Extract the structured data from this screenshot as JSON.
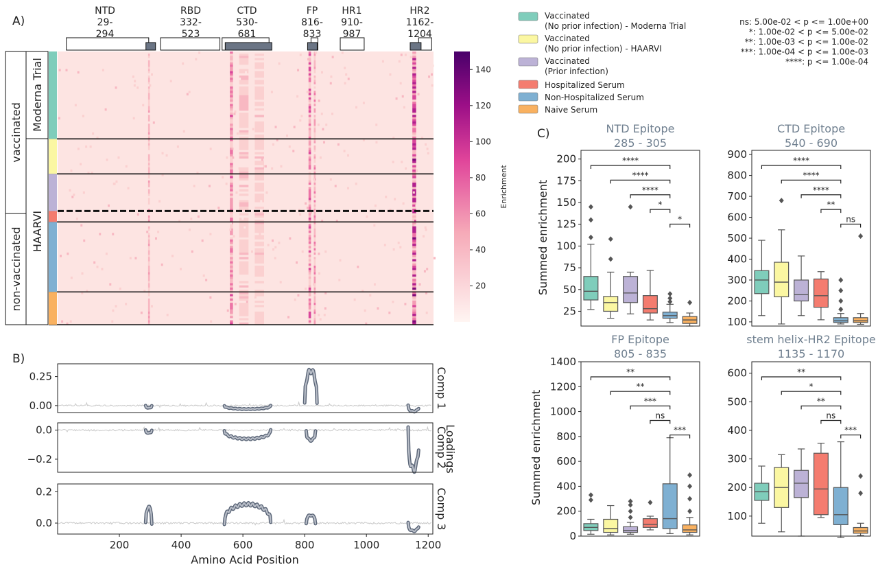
{
  "chart_data": [
    {
      "type": "heatmap",
      "panel_label": "A)",
      "x_range": [
        1,
        1210
      ],
      "regions": [
        {
          "name": "NTD",
          "range_text": "29-\n294",
          "start": 29,
          "end": 294
        },
        {
          "name": "RBD",
          "range_text": "332-\n523",
          "start": 332,
          "end": 523
        },
        {
          "name": "CTD",
          "range_text": "530-\n681",
          "start": 530,
          "end": 681
        },
        {
          "name": "FP",
          "range_text": "816-\n833",
          "start": 816,
          "end": 833
        },
        {
          "name": "HR1",
          "range_text": "910-\n987",
          "start": 910,
          "end": 987
        },
        {
          "name": "HR2",
          "range_text": "1162-\n1204",
          "start": 1162,
          "end": 1204
        }
      ],
      "epitope_marks": [
        [
          285,
          305
        ],
        [
          540,
          690
        ],
        [
          805,
          835
        ],
        [
          1135,
          1170
        ]
      ],
      "row_groups": [
        {
          "name": "Vaccinated (No prior infection) - Moderna Trial",
          "color": "#7fcdbb",
          "rows": 40
        },
        {
          "name": "Vaccinated (No prior infection) - HAARVI",
          "color": "#fbf7a2",
          "rows": 16
        },
        {
          "name": "Vaccinated (Prior infection)",
          "color": "#bcb2d6",
          "rows": 17
        },
        {
          "name": "Hospitalized Serum",
          "color": "#f47c6f",
          "rows": 5
        },
        {
          "name": "Non-Hospitalized Serum",
          "color": "#7fb0d2",
          "rows": 32
        },
        {
          "name": "Naive Serum",
          "color": "#f9b160",
          "rows": 15
        }
      ],
      "side_labels": {
        "status_top": "vaccinated",
        "status_bottom": "non-vaccinated",
        "cohort_top": "Moderna Trial",
        "cohort_bottom": "HAARVI"
      },
      "colorbar": {
        "label": "Enrichment",
        "min": 0,
        "max": 150,
        "ticks": [
          "20",
          "40",
          "60",
          "80",
          "100",
          "120",
          "140"
        ]
      },
      "hot_columns": [
        {
          "pos": 295,
          "mean": 35,
          "width": 6
        },
        {
          "pos": 560,
          "mean": 55,
          "width": 10
        },
        {
          "pos": 600,
          "mean": 25,
          "width": 30
        },
        {
          "pos": 650,
          "mean": 22,
          "width": 30
        },
        {
          "pos": 812,
          "mean": 60,
          "width": 8
        },
        {
          "pos": 828,
          "mean": 45,
          "width": 6
        },
        {
          "pos": 1148,
          "mean": 75,
          "width": 12
        }
      ]
    },
    {
      "type": "line",
      "panel_label": "B)",
      "xlabel": "Amino Acid Position",
      "ylabel": "Loadings",
      "x_ticks": [
        "200",
        "400",
        "600",
        "800",
        "1000",
        "1200"
      ],
      "xlim": [
        0,
        1215
      ],
      "components": [
        {
          "name": "Comp 1",
          "ylim": [
            -0.06,
            0.36
          ],
          "yticks": [
            {
              "v": 0.0,
              "label": "0.00"
            },
            {
              "v": 0.25,
              "label": "0.25"
            }
          ],
          "features": [
            {
              "x0": 285,
              "x1": 305,
              "h": -0.02
            },
            {
              "x0": 540,
              "x1": 690,
              "h": -0.03
            },
            {
              "x0": 800,
              "x1": 840,
              "h": 0.3
            },
            {
              "x0": 1135,
              "x1": 1170,
              "h": -0.05
            }
          ]
        },
        {
          "name": "Comp 2",
          "ylim": [
            -0.29,
            0.05
          ],
          "yticks": [
            {
              "v": 0.0,
              "label": "0.0"
            },
            {
              "v": -0.2,
              "label": "−0.2"
            }
          ],
          "features": [
            {
              "x0": 285,
              "x1": 305,
              "h": -0.02
            },
            {
              "x0": 540,
              "x1": 690,
              "h": -0.06
            },
            {
              "x0": 805,
              "x1": 835,
              "h": -0.07
            },
            {
              "x0": 1135,
              "x1": 1170,
              "h": -0.27
            }
          ]
        },
        {
          "name": "Comp 3",
          "ylim": [
            -0.07,
            0.25
          ],
          "yticks": [
            {
              "v": 0.0,
              "label": "0.0"
            },
            {
              "v": 0.2,
              "label": "0.2"
            }
          ],
          "features": [
            {
              "x0": 285,
              "x1": 305,
              "h": 0.1
            },
            {
              "x0": 540,
              "x1": 690,
              "h": 0.12
            },
            {
              "x0": 805,
              "x1": 835,
              "h": 0.05
            },
            {
              "x0": 1135,
              "x1": 1170,
              "h": -0.05
            }
          ]
        }
      ]
    },
    {
      "type": "box",
      "panel_label": "C)",
      "ylabel": "Summed enrichment",
      "group_colors": [
        "#7fcdbb",
        "#fbf7a2",
        "#bcb2d6",
        "#f47c6f",
        "#7fb0d2",
        "#f9b160"
      ],
      "significance_legend": [
        "ns: 5.00e-02 < p <= 1.00e+00",
        "*: 1.00e-02 < p <= 5.00e-02",
        "**: 1.00e-03 < p <= 1.00e-02",
        "***: 1.00e-04 < p <= 1.00e-03",
        "****: p <= 1.00e-04"
      ],
      "panels": [
        {
          "title": "NTD Epitope",
          "subtitle": "285 - 305",
          "ylim": [
            8,
            210
          ],
          "yticks": [
            "25",
            "50",
            "75",
            "100",
            "125",
            "150",
            "175",
            "200"
          ],
          "boxes": [
            {
              "q1": 38,
              "median": 48,
              "q3": 65,
              "wlo": 27,
              "whi": 102,
              "fliers": [
                110,
                130,
                145
              ]
            },
            {
              "q1": 25,
              "median": 35,
              "q3": 42,
              "wlo": 17,
              "whi": 70,
              "fliers": [
                85,
                108
              ]
            },
            {
              "q1": 35,
              "median": 46,
              "q3": 65,
              "wlo": 22,
              "whi": 70,
              "fliers": [
                145
              ]
            },
            {
              "q1": 23,
              "median": 28,
              "q3": 43,
              "wlo": 15,
              "whi": 72,
              "fliers": []
            },
            {
              "q1": 17,
              "median": 20,
              "q3": 24,
              "wlo": 12,
              "whi": 33,
              "fliers": [
                36,
                40,
                45
              ]
            },
            {
              "q1": 11,
              "median": 15,
              "q3": 19,
              "wlo": 8,
              "whi": 23,
              "fliers": [
                35
              ]
            }
          ],
          "brackets": [
            {
              "from": 0,
              "to": 4,
              "label": "****"
            },
            {
              "from": 1,
              "to": 4,
              "label": "****"
            },
            {
              "from": 2,
              "to": 4,
              "label": "****"
            },
            {
              "from": 3,
              "to": 4,
              "label": "*"
            },
            {
              "from": 4,
              "to": 5,
              "label": "*"
            }
          ]
        },
        {
          "title": "CTD Epitope",
          "subtitle": "540 - 690",
          "ylim": [
            80,
            920
          ],
          "yticks": [
            "100",
            "200",
            "300",
            "400",
            "500",
            "600",
            "700",
            "800",
            "900"
          ],
          "boxes": [
            {
              "q1": 235,
              "median": 300,
              "q3": 345,
              "wlo": 130,
              "whi": 490,
              "fliers": []
            },
            {
              "q1": 220,
              "median": 290,
              "q3": 385,
              "wlo": 90,
              "whi": 540,
              "fliers": [
                680
              ]
            },
            {
              "q1": 200,
              "median": 230,
              "q3": 300,
              "wlo": 130,
              "whi": 415,
              "fliers": []
            },
            {
              "q1": 170,
              "median": 225,
              "q3": 305,
              "wlo": 110,
              "whi": 340,
              "fliers": []
            },
            {
              "q1": 97,
              "median": 105,
              "q3": 120,
              "wlo": 90,
              "whi": 140,
              "fliers": [
                160,
                200,
                250,
                300
              ]
            },
            {
              "q1": 97,
              "median": 105,
              "q3": 120,
              "wlo": 88,
              "whi": 140,
              "fliers": [
                510
              ]
            }
          ],
          "brackets": [
            {
              "from": 0,
              "to": 4,
              "label": "****"
            },
            {
              "from": 1,
              "to": 4,
              "label": "****"
            },
            {
              "from": 2,
              "to": 4,
              "label": "****"
            },
            {
              "from": 3,
              "to": 4,
              "label": "**"
            },
            {
              "from": 4,
              "to": 5,
              "label": "ns"
            }
          ]
        },
        {
          "title": "FP Epitope",
          "subtitle": "805 - 835",
          "ylim": [
            0,
            1400
          ],
          "yticks": [
            "0",
            "200",
            "400",
            "600",
            "800",
            "1000",
            "1200",
            "1400"
          ],
          "boxes": [
            {
              "q1": 45,
              "median": 70,
              "q3": 100,
              "wlo": 15,
              "whi": 135,
              "fliers": [
                290,
                330
              ]
            },
            {
              "q1": 30,
              "median": 60,
              "q3": 135,
              "wlo": 10,
              "whi": 245,
              "fliers": []
            },
            {
              "q1": 30,
              "median": 45,
              "q3": 75,
              "wlo": 15,
              "whi": 110,
              "fliers": [
                150,
                200,
                250,
                280
              ]
            },
            {
              "q1": 70,
              "median": 95,
              "q3": 140,
              "wlo": 50,
              "whi": 160,
              "fliers": [
                270
              ]
            },
            {
              "q1": 60,
              "median": 140,
              "q3": 420,
              "wlo": 20,
              "whi": 790,
              "fliers": []
            },
            {
              "q1": 30,
              "median": 50,
              "q3": 90,
              "wlo": 10,
              "whi": 150,
              "fliers": [
                200,
                300,
                400,
                490
              ]
            }
          ],
          "brackets": [
            {
              "from": 0,
              "to": 4,
              "label": "**"
            },
            {
              "from": 1,
              "to": 4,
              "label": "**"
            },
            {
              "from": 2,
              "to": 4,
              "label": "***"
            },
            {
              "from": 3,
              "to": 4,
              "label": "ns"
            },
            {
              "from": 4,
              "to": 5,
              "label": "***"
            }
          ]
        },
        {
          "title": "stem helix-HR2 Epitope",
          "subtitle": "1135 - 1170",
          "ylim": [
            30,
            640
          ],
          "yticks": [
            "100",
            "200",
            "300",
            "400",
            "500",
            "600"
          ],
          "boxes": [
            {
              "q1": 155,
              "median": 185,
              "q3": 215,
              "wlo": 75,
              "whi": 275,
              "fliers": []
            },
            {
              "q1": 130,
              "median": 200,
              "q3": 270,
              "wlo": 45,
              "whi": 315,
              "fliers": []
            },
            {
              "q1": 165,
              "median": 215,
              "q3": 260,
              "wlo": 30,
              "whi": 335,
              "fliers": []
            },
            {
              "q1": 105,
              "median": 195,
              "q3": 320,
              "wlo": 95,
              "whi": 355,
              "fliers": []
            },
            {
              "q1": 70,
              "median": 105,
              "q3": 200,
              "wlo": 25,
              "whi": 360,
              "fliers": []
            },
            {
              "q1": 40,
              "median": 48,
              "q3": 60,
              "wlo": 32,
              "whi": 75,
              "fliers": [
                180,
                240
              ]
            }
          ],
          "brackets": [
            {
              "from": 0,
              "to": 4,
              "label": "**"
            },
            {
              "from": 1,
              "to": 4,
              "label": "*"
            },
            {
              "from": 2,
              "to": 4,
              "label": "**"
            },
            {
              "from": 3,
              "to": 4,
              "label": "ns"
            },
            {
              "from": 4,
              "to": 5,
              "label": "***"
            }
          ]
        }
      ]
    }
  ]
}
